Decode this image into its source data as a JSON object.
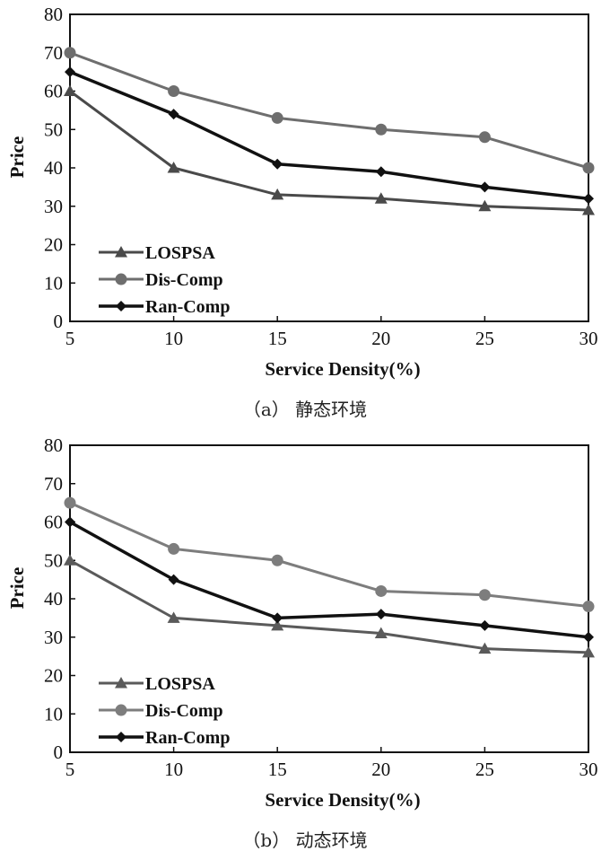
{
  "chart_data": [
    {
      "type": "line",
      "caption": "（a） 静态环境",
      "xlabel": "Service Density(%)",
      "ylabel": "Price",
      "x": [
        5,
        10,
        15,
        20,
        25,
        30
      ],
      "xlim": [
        5,
        30
      ],
      "ylim": [
        0,
        80
      ],
      "yticks": [
        0,
        10,
        20,
        30,
        40,
        50,
        60,
        70,
        80
      ],
      "grid": false,
      "legend": "bottom-left",
      "series": [
        {
          "name": "LOSPSA",
          "marker": "triangle",
          "color": "#4a4a4a",
          "values": [
            60,
            40,
            33,
            32,
            30,
            29
          ]
        },
        {
          "name": "Dis-Comp",
          "marker": "circle",
          "color": "#6e6e6e",
          "values": [
            70,
            60,
            53,
            50,
            48,
            40
          ]
        },
        {
          "name": "Ran-Comp",
          "marker": "diamond",
          "color": "#111111",
          "values": [
            65,
            54,
            41,
            39,
            35,
            32
          ]
        }
      ]
    },
    {
      "type": "line",
      "caption": "（b） 动态环境",
      "xlabel": "Service Density(%)",
      "ylabel": "Price",
      "x": [
        5,
        10,
        15,
        20,
        25,
        30
      ],
      "xlim": [
        5,
        30
      ],
      "ylim": [
        0,
        80
      ],
      "yticks": [
        0,
        10,
        20,
        30,
        40,
        50,
        60,
        70,
        80
      ],
      "grid": false,
      "legend": "bottom-left",
      "series": [
        {
          "name": "LOSPSA",
          "marker": "triangle",
          "color": "#5a5a5a",
          "values": [
            50,
            35,
            33,
            31,
            27,
            26
          ]
        },
        {
          "name": "Dis-Comp",
          "marker": "circle",
          "color": "#7d7d7d",
          "values": [
            65,
            53,
            50,
            42,
            41,
            38
          ]
        },
        {
          "name": "Ran-Comp",
          "marker": "diamond",
          "color": "#111111",
          "values": [
            60,
            45,
            35,
            36,
            33,
            30
          ]
        }
      ]
    }
  ]
}
